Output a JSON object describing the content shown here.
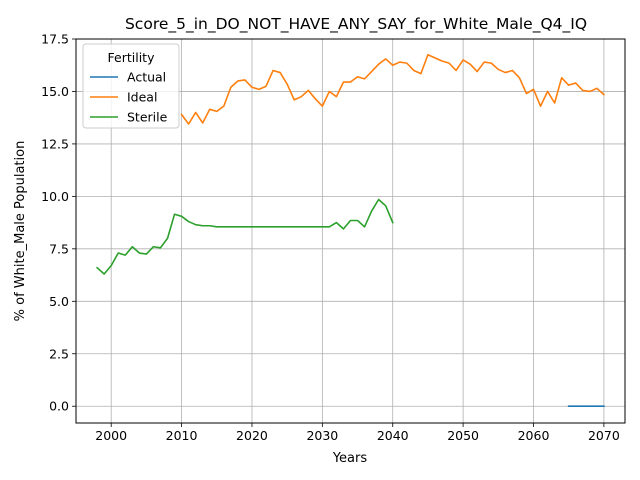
{
  "chart_data": {
    "type": "line",
    "title": "Score_5_in_DO_NOT_HAVE_ANY_SAY_for_White_Male_Q4_IQ",
    "xlabel": "Years",
    "ylabel": "% of White_Male Population",
    "xlim": [
      1995,
      2073
    ],
    "ylim": [
      -0.8,
      17.5
    ],
    "xticks": [
      2000,
      2010,
      2020,
      2030,
      2040,
      2050,
      2060,
      2070
    ],
    "yticks": [
      0.0,
      2.5,
      5.0,
      7.5,
      10.0,
      12.5,
      15.0,
      17.5
    ],
    "ytick_labels": [
      "0.0",
      "2.5",
      "5.0",
      "7.5",
      "10.0",
      "12.5",
      "15.0",
      "17.5"
    ],
    "grid": true,
    "legend": {
      "title": "Fertility",
      "placement": "top-left"
    },
    "series": [
      {
        "name": "Actual",
        "color": "#1f77b4",
        "x": [
          2065,
          2066,
          2067,
          2068,
          2069,
          2070
        ],
        "y": [
          0.0,
          0.0,
          0.0,
          0.0,
          0.0,
          0.0
        ]
      },
      {
        "name": "Ideal",
        "color": "#ff7f0e",
        "x": [
          2010,
          2011,
          2012,
          2013,
          2014,
          2015,
          2016,
          2017,
          2018,
          2019,
          2020,
          2021,
          2022,
          2023,
          2024,
          2025,
          2026,
          2027,
          2028,
          2029,
          2030,
          2031,
          2032,
          2033,
          2034,
          2035,
          2036,
          2037,
          2038,
          2039,
          2040,
          2041,
          2042,
          2043,
          2044,
          2045,
          2046,
          2047,
          2048,
          2049,
          2050,
          2051,
          2052,
          2053,
          2054,
          2055,
          2056,
          2057,
          2058,
          2059,
          2060,
          2061,
          2062,
          2063,
          2064,
          2065,
          2066,
          2067,
          2068,
          2069,
          2070
        ],
        "y": [
          13.9,
          13.45,
          14.0,
          13.5,
          14.15,
          14.05,
          14.3,
          15.2,
          15.5,
          15.55,
          15.2,
          15.1,
          15.25,
          16.0,
          15.9,
          15.35,
          14.6,
          14.75,
          15.05,
          14.65,
          14.3,
          15.0,
          14.75,
          15.45,
          15.45,
          15.7,
          15.6,
          15.95,
          16.3,
          16.55,
          16.25,
          16.4,
          16.35,
          16.0,
          15.85,
          16.75,
          16.6,
          16.45,
          16.35,
          16.0,
          16.5,
          16.3,
          15.95,
          16.4,
          16.35,
          16.05,
          15.9,
          16.0,
          15.65,
          14.9,
          15.1,
          14.3,
          15.0,
          14.45,
          15.65,
          15.3,
          15.4,
          15.05,
          15.0,
          15.15,
          14.85
        ]
      },
      {
        "name": "Sterile",
        "color": "#2ca02c",
        "x": [
          1998,
          1999,
          2000,
          2001,
          2002,
          2003,
          2004,
          2005,
          2006,
          2007,
          2008,
          2009,
          2010,
          2011,
          2012,
          2013,
          2014,
          2015,
          2016,
          2017,
          2018,
          2019,
          2020,
          2021,
          2022,
          2023,
          2024,
          2025,
          2026,
          2027,
          2028,
          2029,
          2030,
          2031,
          2032,
          2033,
          2034,
          2035,
          2036,
          2037,
          2038,
          2039,
          2040
        ],
        "y": [
          6.6,
          6.3,
          6.7,
          7.3,
          7.2,
          7.6,
          7.3,
          7.25,
          7.6,
          7.55,
          8.0,
          9.15,
          9.05,
          8.8,
          8.65,
          8.6,
          8.6,
          8.55,
          8.55,
          8.55,
          8.55,
          8.55,
          8.55,
          8.55,
          8.55,
          8.55,
          8.55,
          8.55,
          8.55,
          8.55,
          8.55,
          8.55,
          8.55,
          8.55,
          8.75,
          8.45,
          8.85,
          8.85,
          8.55,
          9.3,
          9.85,
          9.55,
          8.75
        ]
      }
    ]
  }
}
